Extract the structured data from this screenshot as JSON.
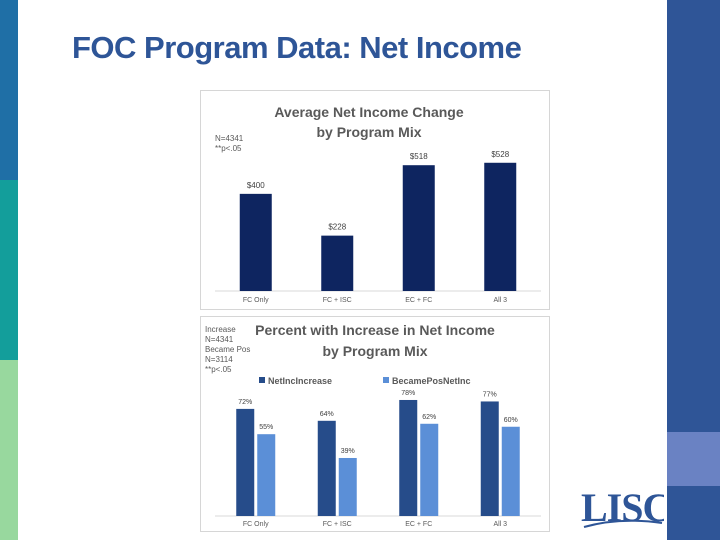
{
  "slide": {
    "title": "FOC Program Data: Net Income",
    "strip_colors": [
      "#1f6fa6",
      "#139e9b",
      "#98d89e",
      "#2f5597",
      "#6a82c3"
    ]
  },
  "logo": {
    "text": "LISC",
    "accent_color": "#2e5597"
  },
  "chart_data": [
    {
      "type": "bar",
      "title": "Average Net Income Change by Program Mix",
      "title_lines": [
        "Average Net Income Change",
        "by Program Mix"
      ],
      "notes": [
        "N=4341",
        "**p<.05"
      ],
      "categories": [
        "FC Only",
        "FC + ISC",
        "EC + FC",
        "All 3"
      ],
      "series": [
        {
          "values": [
            400,
            228,
            518,
            528
          ],
          "color": "#0e2560"
        }
      ],
      "data_labels": [
        "$400",
        "$228",
        "$518",
        "$528"
      ],
      "ylim": [
        0,
        560
      ],
      "xlabel": "",
      "ylabel": "",
      "grid": false
    },
    {
      "type": "bar",
      "title": "Percent with Increase in Net Income by Program Mix",
      "title_lines": [
        "Percent with Increase in Net Income",
        "by Program Mix"
      ],
      "notes": [
        "Increase",
        "N=4341",
        "Became Pos",
        "N=3114",
        "**p<.05"
      ],
      "categories": [
        "FC Only",
        "FC + ISC",
        "EC + FC",
        "All 3"
      ],
      "series": [
        {
          "name": "NetIncIncrease",
          "values": [
            72,
            64,
            78,
            77
          ],
          "color": "#264c8a"
        },
        {
          "name": "BecamePosNetInc",
          "values": [
            55,
            39,
            62,
            60
          ],
          "color": "#5b8fd7"
        }
      ],
      "data_labels": [
        [
          "72%",
          "64%",
          "78%",
          "77%"
        ],
        [
          "55%",
          "39%",
          "62%",
          "60%"
        ]
      ],
      "ylim": [
        0,
        80
      ],
      "xlabel": "",
      "ylabel": "",
      "grid": false,
      "legend": "top-left"
    }
  ]
}
